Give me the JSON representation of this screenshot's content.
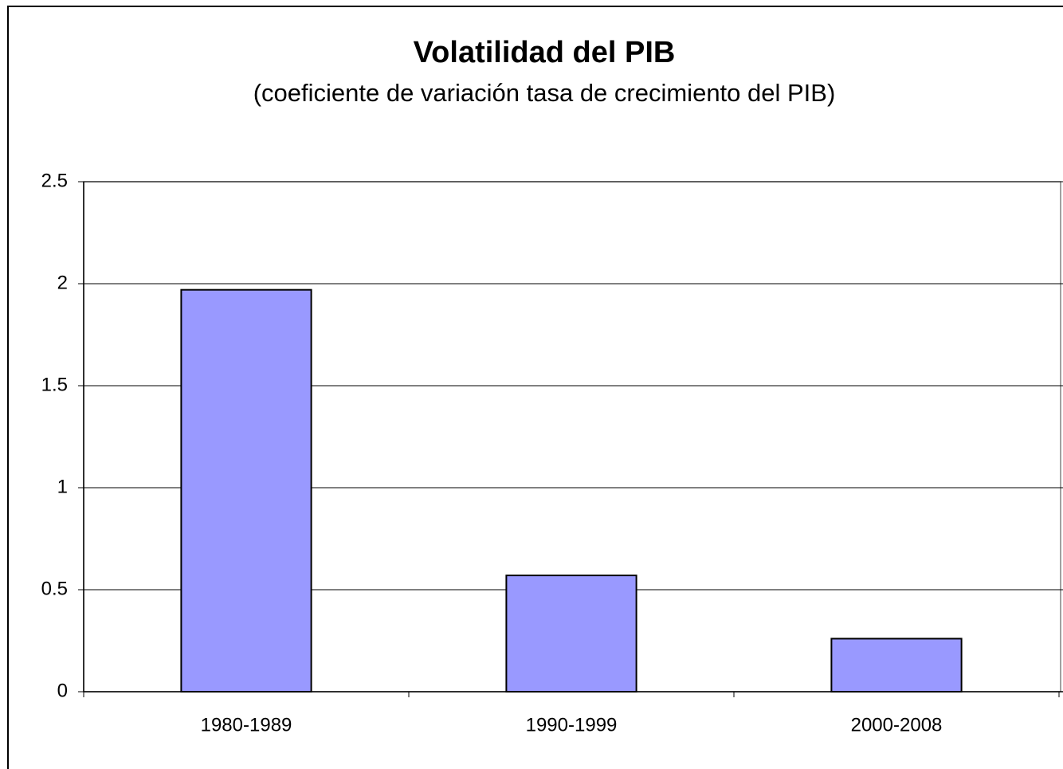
{
  "chart_data": {
    "type": "bar",
    "title": "Volatilidad del PIB",
    "subtitle": "(coeficiente de variación tasa de crecimiento del PIB)",
    "categories": [
      "1980-1989",
      "1990-1999",
      "2000-2008"
    ],
    "values": [
      1.97,
      0.57,
      0.26
    ],
    "color": "#9999ff",
    "ylim": [
      0,
      2.5
    ],
    "yticks": [
      0,
      0.5,
      1,
      1.5,
      2,
      2.5
    ],
    "grid": true
  }
}
